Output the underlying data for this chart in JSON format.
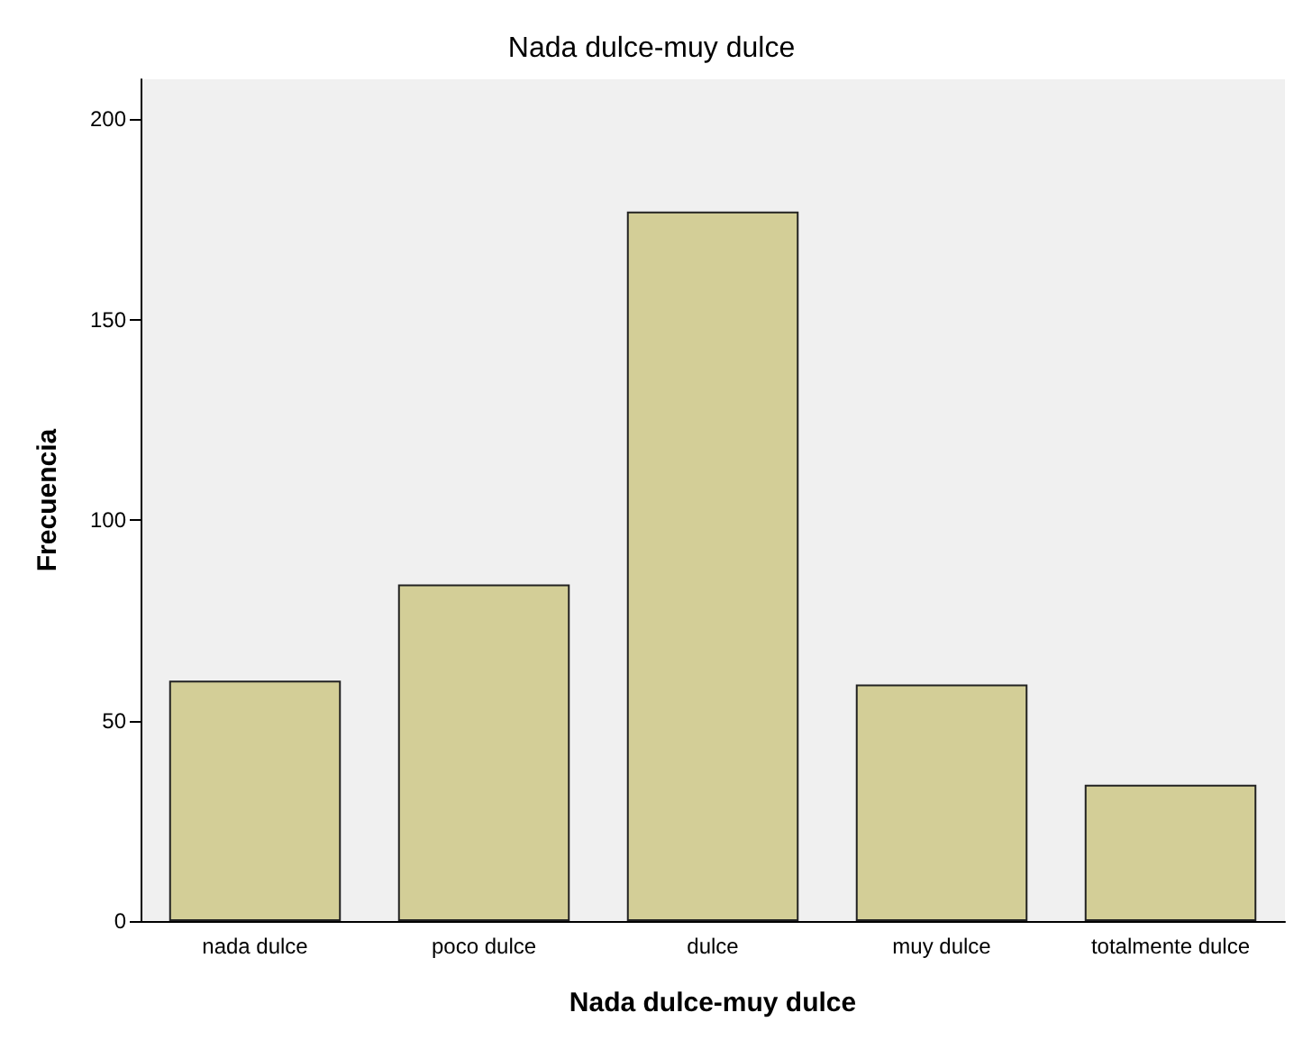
{
  "chart_data": {
    "type": "bar",
    "title": "Nada dulce-muy dulce",
    "xlabel": "Nada dulce-muy dulce",
    "ylabel": "Frecuencia",
    "categories": [
      "nada dulce",
      "poco dulce",
      "dulce",
      "muy dulce",
      "totalmente dulce"
    ],
    "values": [
      60,
      84,
      177,
      59,
      34
    ],
    "color": "#d3ce97",
    "ylim": [
      0,
      210
    ],
    "yticks": [
      0,
      50,
      100,
      150,
      200
    ]
  }
}
